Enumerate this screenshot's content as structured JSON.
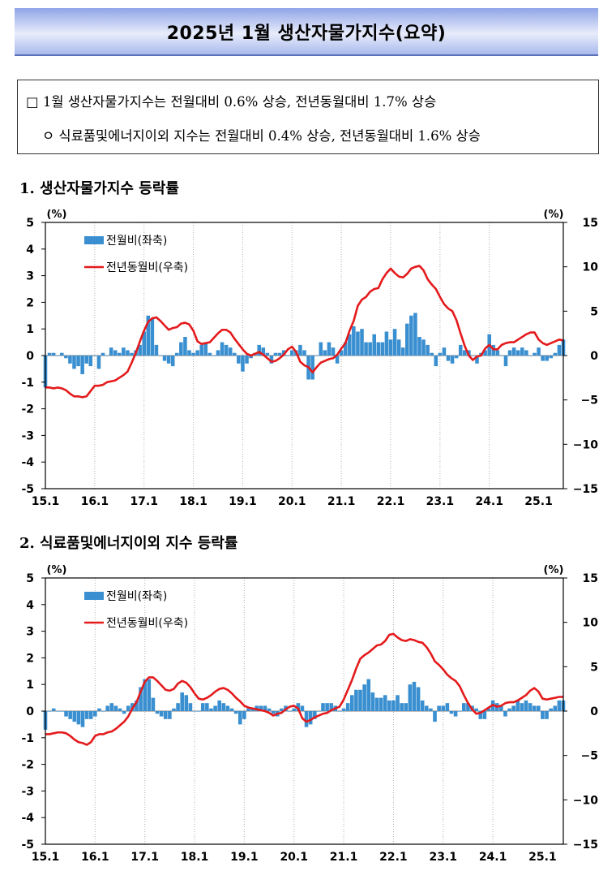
{
  "header": {
    "title": "2025년  1월  생산자물가지수(요약)"
  },
  "summary": {
    "line1": "□  1월  생산자물가지수는  전월대비  0.6%  상승,  전년동월대비  1.7%  상승",
    "line2": "ㅇ  식료품및에너지이외  지수는  전월대비  0.4%  상승,  전년동월대비  1.6%  상승"
  },
  "sections": [
    {
      "title": "1.  생산자물가지수  등락률"
    },
    {
      "title": "2.  식료품및에너지이외  지수  등락률"
    }
  ],
  "colors": {
    "bar": "#3a8fd0",
    "line": "#e41a1c",
    "grid": "#b0b0b0"
  },
  "chart_data": [
    {
      "type": "bar+line",
      "title": "생산자물가지수 등락률",
      "left_axis_label": "(%)",
      "right_axis_label": "(%)",
      "ylim_left": [
        -5,
        5
      ],
      "ylim_right": [
        -15,
        15
      ],
      "yticks_left": [
        "5",
        "4",
        "3",
        "2",
        "1",
        "0",
        "-1",
        "-2",
        "-3",
        "-4",
        "-5"
      ],
      "yticks_right": [
        "15",
        "10",
        "5",
        "0",
        "-5",
        "-10",
        "-15"
      ],
      "x_tick_labels": [
        "15.1",
        "16.1",
        "17.1",
        "18.1",
        "19.1",
        "20.1",
        "21.1",
        "22.1",
        "23.1",
        "24.1",
        "25.1"
      ],
      "grid": "vertical dotted",
      "legend": [
        "전월비(좌축)",
        "전년동월비(우축)"
      ],
      "series": [
        {
          "name": "전월비(좌축)",
          "axis": "left",
          "type": "bar",
          "values": [
            -1.2,
            0.1,
            0.1,
            0.0,
            0.1,
            -0.1,
            -0.3,
            -0.5,
            -0.4,
            -0.7,
            -0.3,
            -0.4,
            0.0,
            -0.5,
            0.1,
            0.0,
            0.3,
            0.2,
            0.1,
            0.3,
            0.2,
            0.1,
            0.2,
            0.4,
            0.9,
            1.5,
            1.4,
            0.4,
            0.0,
            -0.2,
            -0.3,
            -0.4,
            0.1,
            0.5,
            0.7,
            0.2,
            0.1,
            0.2,
            0.4,
            0.5,
            0.1,
            0.0,
            0.2,
            0.5,
            0.4,
            0.3,
            0.1,
            -0.3,
            -0.6,
            -0.3,
            -0.1,
            0.1,
            0.4,
            0.3,
            0.1,
            -0.3,
            0.1,
            0.1,
            0.2,
            0.0,
            0.2,
            0.2,
            0.4,
            0.2,
            -0.9,
            -0.9,
            0.0,
            0.5,
            0.2,
            0.5,
            0.3,
            -0.3,
            0.2,
            0.5,
            0.8,
            1.1,
            0.9,
            1.0,
            0.5,
            0.5,
            0.8,
            0.5,
            0.5,
            0.9,
            0.6,
            1.0,
            0.6,
            0.3,
            1.2,
            1.5,
            1.6,
            0.7,
            0.6,
            0.4,
            0.1,
            -0.4,
            0.1,
            0.3,
            -0.2,
            -0.3,
            -0.1,
            0.4,
            0.2,
            0.2,
            0.0,
            -0.3,
            0.1,
            0.2,
            0.8,
            0.4,
            0.2,
            0.0,
            -0.4,
            0.2,
            0.3,
            0.2,
            0.3,
            0.2,
            0.0,
            0.1,
            0.3,
            -0.2,
            -0.2,
            -0.1,
            0.1,
            0.4,
            0.6
          ]
        },
        {
          "name": "전년동월비(우축)",
          "axis": "right",
          "type": "line",
          "values": [
            -3.6,
            -3.6,
            -3.7,
            -3.6,
            -3.7,
            -3.9,
            -4.3,
            -4.6,
            -4.6,
            -4.7,
            -4.6,
            -4.0,
            -3.4,
            -3.4,
            -3.3,
            -3.0,
            -2.9,
            -2.8,
            -2.5,
            -2.2,
            -1.8,
            -0.8,
            0.3,
            1.6,
            2.8,
            3.8,
            4.2,
            4.3,
            3.9,
            3.4,
            2.9,
            3.1,
            3.2,
            3.6,
            3.7,
            3.5,
            2.8,
            1.6,
            1.3,
            1.4,
            1.5,
            2.0,
            2.5,
            2.9,
            2.9,
            2.6,
            1.9,
            1.3,
            0.7,
            0.2,
            0.0,
            0.2,
            0.4,
            0.1,
            -0.3,
            -0.7,
            -0.6,
            -0.3,
            0.1,
            0.7,
            1.0,
            0.4,
            -0.7,
            -1.1,
            -1.3,
            -1.9,
            -1.3,
            -0.8,
            -0.6,
            -0.4,
            -0.3,
            0.1,
            0.8,
            1.4,
            2.8,
            3.9,
            5.6,
            6.3,
            6.6,
            7.2,
            7.5,
            7.6,
            8.6,
            9.3,
            9.8,
            9.3,
            8.9,
            8.8,
            9.2,
            9.8,
            10.0,
            10.1,
            9.6,
            8.6,
            8.0,
            7.5,
            6.6,
            5.8,
            5.3,
            5.0,
            4.0,
            2.5,
            1.1,
            0.0,
            -0.5,
            -0.1,
            0.0,
            0.8,
            1.2,
            0.7,
            0.7,
            1.2,
            1.4,
            1.5,
            1.5,
            1.8,
            2.1,
            2.4,
            2.6,
            2.6,
            1.8,
            1.4,
            1.2,
            1.4,
            1.6,
            1.8,
            1.7
          ]
        }
      ]
    },
    {
      "type": "bar+line",
      "title": "식료품및에너지이외 지수 등락률",
      "left_axis_label": "(%)",
      "right_axis_label": "(%)",
      "ylim_left": [
        -5,
        5
      ],
      "ylim_right": [
        -15,
        15
      ],
      "yticks_left": [
        "5",
        "4",
        "3",
        "2",
        "1",
        "0",
        "-1",
        "-2",
        "-3",
        "-4",
        "-5"
      ],
      "yticks_right": [
        "15",
        "10",
        "5",
        "0",
        "-5",
        "-10",
        "-15"
      ],
      "x_tick_labels": [
        "15.1",
        "16.1",
        "17.1",
        "18.1",
        "19.1",
        "20.1",
        "21.1",
        "22.1",
        "23.1",
        "24.1",
        "25.1"
      ],
      "grid": "vertical dotted",
      "legend": [
        "전월비(좌축)",
        "전년동월비(우축)"
      ],
      "series": [
        {
          "name": "전월비(좌축)",
          "axis": "left",
          "type": "bar",
          "values": [
            -0.7,
            0.0,
            0.1,
            0.0,
            0.0,
            -0.2,
            -0.3,
            -0.4,
            -0.5,
            -0.6,
            -0.3,
            -0.3,
            -0.2,
            0.1,
            0.0,
            0.2,
            0.3,
            0.2,
            0.1,
            -0.1,
            0.2,
            0.3,
            0.4,
            0.9,
            1.2,
            1.2,
            0.5,
            -0.1,
            -0.2,
            -0.3,
            -0.3,
            0.1,
            0.3,
            0.7,
            0.6,
            0.3,
            0.0,
            0.0,
            0.3,
            0.3,
            0.1,
            0.2,
            0.4,
            0.3,
            0.2,
            0.1,
            -0.1,
            -0.5,
            -0.3,
            0.1,
            0.1,
            0.2,
            0.2,
            0.2,
            0.1,
            -0.1,
            -0.2,
            0.1,
            0.2,
            0.0,
            0.1,
            0.3,
            0.2,
            -0.6,
            -0.5,
            -0.3,
            0.0,
            0.3,
            0.3,
            0.3,
            0.2,
            0.0,
            0.1,
            0.3,
            0.6,
            0.8,
            0.8,
            1.0,
            1.2,
            0.7,
            0.5,
            0.5,
            0.6,
            0.4,
            0.4,
            0.6,
            0.3,
            0.3,
            1.0,
            1.1,
            0.9,
            0.4,
            0.2,
            0.1,
            -0.4,
            0.2,
            0.2,
            0.3,
            -0.1,
            -0.2,
            0.0,
            0.3,
            0.3,
            0.2,
            0.1,
            -0.3,
            -0.3,
            0.1,
            0.4,
            0.3,
            0.2,
            -0.2,
            0.1,
            0.2,
            0.4,
            0.3,
            0.4,
            0.3,
            0.2,
            0.2,
            -0.3,
            -0.3,
            0.1,
            0.2,
            0.4,
            0.4
          ]
        },
        {
          "name": "전년동월비(우축)",
          "axis": "right",
          "type": "line",
          "values": [
            -2.6,
            -2.6,
            -2.5,
            -2.4,
            -2.4,
            -2.5,
            -2.8,
            -3.2,
            -3.5,
            -3.6,
            -3.8,
            -3.5,
            -2.8,
            -2.6,
            -2.6,
            -2.4,
            -2.3,
            -2.0,
            -1.6,
            -1.2,
            -0.6,
            0.3,
            1.0,
            2.2,
            3.3,
            3.8,
            3.8,
            3.4,
            2.9,
            2.4,
            2.3,
            2.5,
            3.1,
            3.4,
            3.2,
            2.7,
            2.0,
            1.4,
            1.3,
            1.5,
            1.8,
            2.2,
            2.5,
            2.6,
            2.4,
            2.0,
            1.5,
            1.1,
            0.6,
            0.4,
            0.3,
            0.2,
            0.1,
            0.0,
            -0.2,
            -0.5,
            -0.3,
            -0.2,
            0.2,
            0.5,
            0.6,
            0.3,
            -0.8,
            -1.2,
            -1.0,
            -0.7,
            -0.5,
            -0.3,
            -0.2,
            0.1,
            0.3,
            0.5,
            1.3,
            2.4,
            3.5,
            4.8,
            5.9,
            6.3,
            6.6,
            7.0,
            7.4,
            7.5,
            7.9,
            8.6,
            8.7,
            8.3,
            8.0,
            7.9,
            8.1,
            8.0,
            7.8,
            7.7,
            7.2,
            6.5,
            5.6,
            5.2,
            4.7,
            4.1,
            3.7,
            3.4,
            2.8,
            1.8,
            0.9,
            0.2,
            -0.3,
            -0.2,
            0.1,
            0.4,
            0.7,
            0.5,
            0.6,
            0.9,
            1.0,
            1.0,
            1.2,
            1.5,
            1.8,
            2.3,
            2.6,
            2.2,
            1.4,
            1.3,
            1.4,
            1.5,
            1.6,
            1.6
          ]
        }
      ]
    }
  ]
}
